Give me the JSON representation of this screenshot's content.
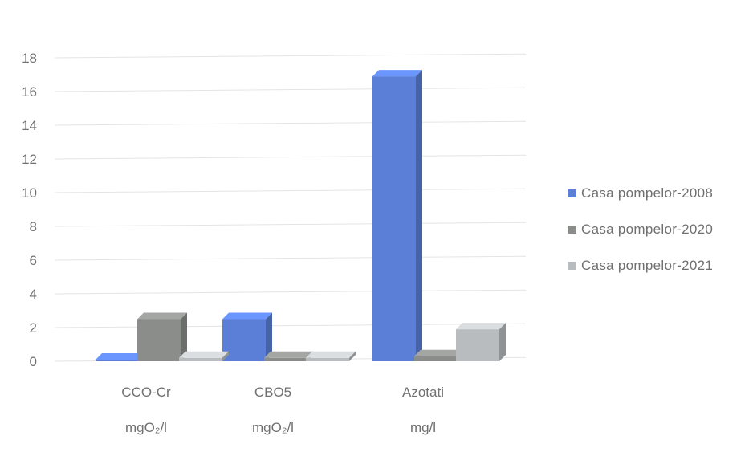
{
  "chart_data": {
    "type": "bar",
    "categories": [
      "CCO-Cr",
      "CBO5",
      "Azotati"
    ],
    "units": [
      "mgO₂/l",
      "mgO₂/l",
      "mg/l"
    ],
    "series": [
      {
        "name": "Casa pompelor-2008",
        "values": [
          0,
          2.5,
          16.9
        ],
        "color": "#5b7fd6"
      },
      {
        "name": "Casa pompelor-2020",
        "values": [
          2.5,
          0.2,
          0.3
        ],
        "color": "#8a8d8a"
      },
      {
        "name": "Casa pompelor-2021",
        "values": [
          0.2,
          0.2,
          1.9
        ],
        "color": "#b9bcbf"
      }
    ],
    "ylim": [
      0,
      18
    ],
    "yticks": [
      "0",
      "2",
      "4",
      "6",
      "8",
      "10",
      "12",
      "14",
      "16",
      "18"
    ],
    "grid": true,
    "legend_position": "right"
  }
}
